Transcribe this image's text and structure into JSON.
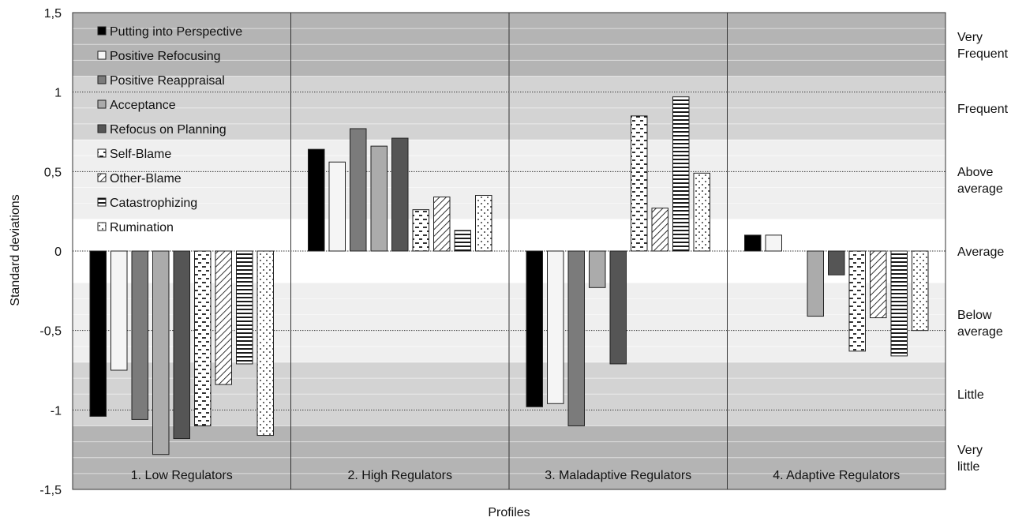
{
  "chart_data": {
    "type": "bar",
    "xlabel": "Profiles",
    "ylabel": "Standard deviations",
    "ylim": [
      -1.5,
      1.5
    ],
    "yticks": [
      1.5,
      1,
      0.5,
      0,
      -0.5,
      -1,
      -1.5
    ],
    "ytick_labels": [
      "1,5",
      "1",
      "0,5",
      "0",
      "-0,5",
      "-1",
      "-1,5"
    ],
    "grid": true,
    "legend_position": "top-left",
    "categories": [
      "1. Low Regulators",
      "2. High Regulators",
      "3. Maladaptive Regulators",
      "4. Adaptive Regulators"
    ],
    "series": [
      {
        "name": "Putting into Perspective",
        "values": [
          -1.04,
          0.64,
          -0.98,
          0.1
        ],
        "fill": "#000000",
        "pattern": "solid"
      },
      {
        "name": "Positive Refocusing",
        "values": [
          -0.75,
          0.56,
          -0.96,
          0.1
        ],
        "fill": "#f5f5f5",
        "pattern": "solid"
      },
      {
        "name": "Positive Reappraisal",
        "values": [
          -1.06,
          0.77,
          -1.1,
          null
        ],
        "fill": "#7b7b7b",
        "pattern": "solid"
      },
      {
        "name": "Acceptance",
        "values": [
          -1.28,
          0.66,
          -0.23,
          -0.41
        ],
        "fill": "#ababab",
        "pattern": "solid"
      },
      {
        "name": "Refocus on Planning",
        "values": [
          -1.18,
          0.71,
          -0.71,
          -0.15
        ],
        "fill": "#555555",
        "pattern": "solid"
      },
      {
        "name": "Self-Blame",
        "values": [
          -1.1,
          0.26,
          0.85,
          -0.63
        ],
        "fill": "#ffffff",
        "pattern": "dash"
      },
      {
        "name": "Other-Blame",
        "values": [
          -0.84,
          0.34,
          0.27,
          -0.42
        ],
        "fill": "#ffffff",
        "pattern": "diagonal"
      },
      {
        "name": "Catastrophizing",
        "values": [
          -0.71,
          0.13,
          0.97,
          -0.66
        ],
        "fill": "#ffffff",
        "pattern": "horizontal"
      },
      {
        "name": "Rumination",
        "values": [
          -1.16,
          0.35,
          0.49,
          -0.5
        ],
        "fill": "#ffffff",
        "pattern": "dots"
      }
    ],
    "bands": [
      {
        "label_lines": [
          "Very",
          "Frequent"
        ],
        "range": [
          1.1,
          1.5
        ],
        "color": "#b4b4b4"
      },
      {
        "label_lines": [
          "Frequent"
        ],
        "range": [
          0.7,
          1.1
        ],
        "color": "#d3d3d3"
      },
      {
        "label_lines": [
          "Above",
          "average"
        ],
        "range": [
          0.2,
          0.7
        ],
        "color": "#efefef"
      },
      {
        "label_lines": [
          "Average"
        ],
        "range": [
          -0.2,
          0.2
        ],
        "color": "#ffffff"
      },
      {
        "label_lines": [
          "Below",
          "average"
        ],
        "range": [
          -0.7,
          -0.2
        ],
        "color": "#efefef"
      },
      {
        "label_lines": [
          "Little"
        ],
        "range": [
          -1.1,
          -0.7
        ],
        "color": "#d3d3d3"
      },
      {
        "label_lines": [
          "Very",
          "little"
        ],
        "range": [
          -1.5,
          -1.1
        ],
        "color": "#b4b4b4"
      }
    ]
  }
}
